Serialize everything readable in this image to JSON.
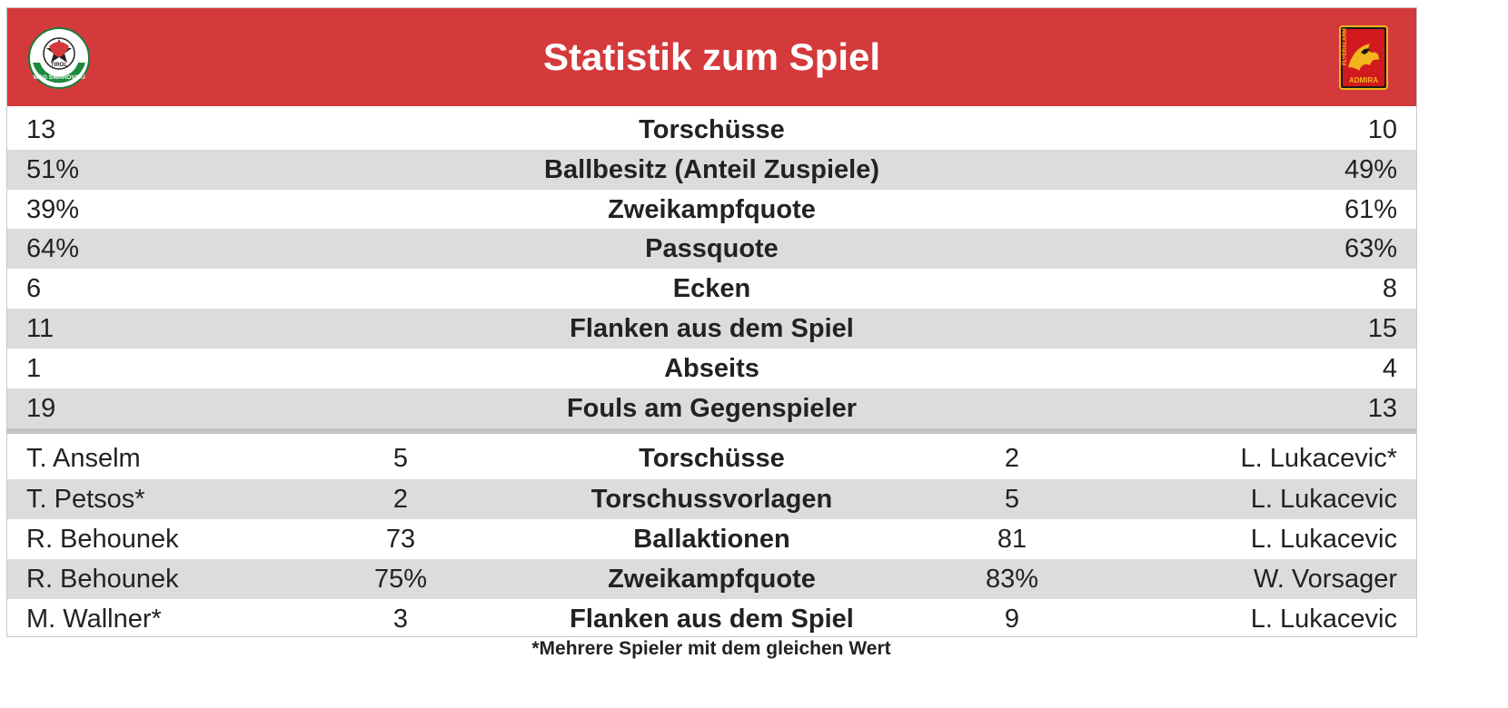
{
  "header": {
    "title": "Statistik zum Spiel",
    "color": "#d43a3b",
    "home_logo_text": "WSG SWAROVSKI",
    "home_logo_top": "TIROL",
    "away_logo_top": "FLYERALARM",
    "away_logo_bottom": "ADMIRA"
  },
  "team_stats": [
    {
      "home": "13",
      "label": "Torschüsse",
      "away": "10"
    },
    {
      "home": "51%",
      "label": "Ballbesitz (Anteil Zuspiele)",
      "away": "49%"
    },
    {
      "home": "39%",
      "label": "Zweikampfquote",
      "away": "61%"
    },
    {
      "home": "64%",
      "label": "Passquote",
      "away": "63%"
    },
    {
      "home": "6",
      "label": "Ecken",
      "away": "8"
    },
    {
      "home": "11",
      "label": "Flanken aus dem Spiel",
      "away": "15"
    },
    {
      "home": "1",
      "label": "Abseits",
      "away": "4"
    },
    {
      "home": "19",
      "label": "Fouls am Gegenspieler",
      "away": "13"
    }
  ],
  "player_stats": [
    {
      "home_player": "T. Anselm",
      "home_value": "5",
      "label": "Torschüsse",
      "away_value": "2",
      "away_player": "L. Lukacevic*"
    },
    {
      "home_player": "T. Petsos*",
      "home_value": "2",
      "label": "Torschussvorlagen",
      "away_value": "5",
      "away_player": "L. Lukacevic"
    },
    {
      "home_player": "R. Behounek",
      "home_value": "73",
      "label": "Ballaktionen",
      "away_value": "81",
      "away_player": "L. Lukacevic"
    },
    {
      "home_player": "R. Behounek",
      "home_value": "75%",
      "label": "Zweikampfquote",
      "away_value": "83%",
      "away_player": "W. Vorsager"
    },
    {
      "home_player": "M. Wallner*",
      "home_value": "3",
      "label": "Flanken aus dem Spiel",
      "away_value": "9",
      "away_player": "L. Lukacevic"
    }
  ],
  "footnote": "*Mehrere Spieler mit dem gleichen Wert"
}
